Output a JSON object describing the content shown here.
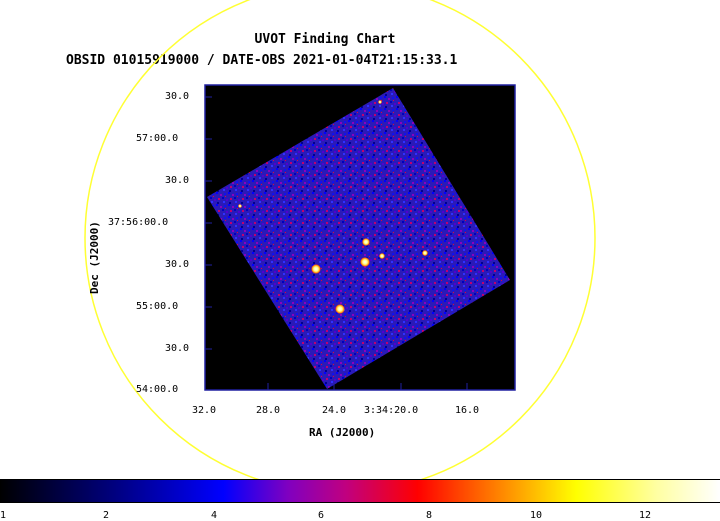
{
  "title": "UVOT Finding Chart",
  "subtitle": "OBSID 01015919000 / DATE-OBS 2021-01-04T21:15:33.1",
  "axes": {
    "xlabel": "RA (J2000)",
    "ylabel": "Dec (J2000)",
    "xticks": [
      "32.0",
      "28.0",
      "24.0",
      "3:34:20.0",
      "16.0"
    ],
    "yticks": [
      "30.0",
      "57:00.0",
      "30.0",
      "37:56:00.0",
      "30.0",
      "55:00.0",
      "30.0",
      "54:00.0"
    ]
  },
  "colorbar": {
    "labels": [
      "1",
      "2",
      "4",
      "6",
      "8",
      "10",
      "12"
    ]
  },
  "colors": {
    "circle": "#ffff33",
    "frame": "#2020a0",
    "background": "#000000"
  }
}
